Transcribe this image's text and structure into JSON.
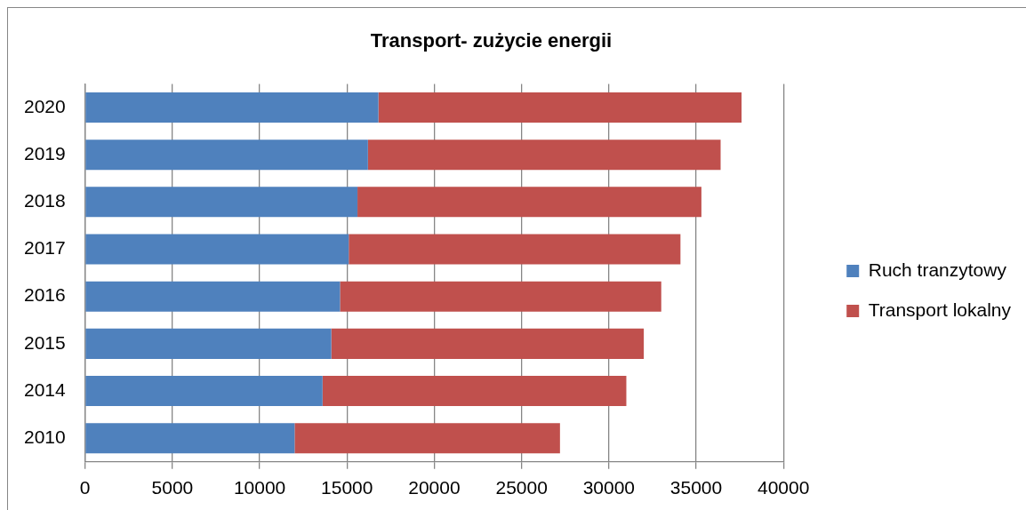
{
  "chart_data": {
    "type": "bar",
    "title": "Transport- zużycie energii",
    "orientation": "horizontal",
    "stacked": true,
    "categories": [
      "2020",
      "2019",
      "2018",
      "2017",
      "2016",
      "2015",
      "2014",
      "2010"
    ],
    "series": [
      {
        "name": "Ruch tranzytowy",
        "color": "#4f81bd",
        "values": [
          16800,
          16200,
          15600,
          15100,
          14600,
          14100,
          13600,
          12000
        ]
      },
      {
        "name": "Transport lokalny",
        "color": "#c0504d",
        "values": [
          20800,
          20200,
          19700,
          19000,
          18400,
          17900,
          17400,
          15200
        ]
      }
    ],
    "xlim": [
      0,
      40000
    ],
    "xticks": [
      0,
      5000,
      10000,
      15000,
      20000,
      25000,
      30000,
      35000,
      40000
    ],
    "grid": "x",
    "legend": "right"
  }
}
